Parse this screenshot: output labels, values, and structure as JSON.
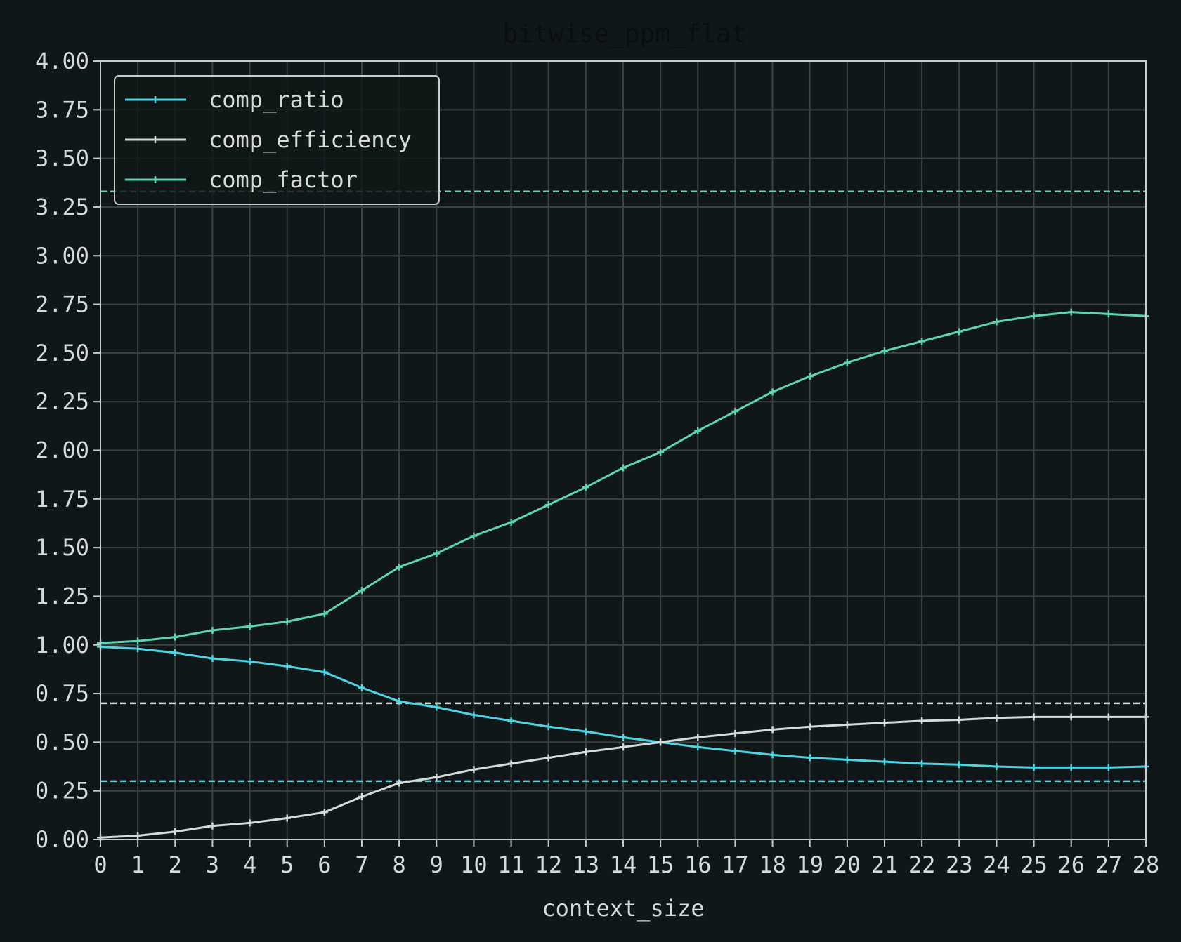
{
  "chart_data": {
    "type": "line",
    "title": "bitwise_ppm_flat",
    "xlabel": "context_size",
    "ylabel": "",
    "xlim": [
      0,
      28
    ],
    "ylim": [
      0,
      4
    ],
    "grid": true,
    "legend_position": "top-left",
    "background_color": "#101718",
    "x": [
      0,
      1,
      2,
      3,
      4,
      5,
      6,
      7,
      8,
      9,
      10,
      11,
      12,
      13,
      14,
      15,
      16,
      17,
      18,
      19,
      20,
      21,
      22,
      23,
      24,
      25,
      26,
      27,
      28
    ],
    "x_ticks": [
      "0",
      "1",
      "2",
      "3",
      "4",
      "5",
      "6",
      "7",
      "8",
      "9",
      "10",
      "11",
      "12",
      "13",
      "14",
      "15",
      "16",
      "17",
      "18",
      "19",
      "20",
      "21",
      "22",
      "23",
      "24",
      "25",
      "26",
      "27",
      "28"
    ],
    "y_ticks": [
      "0.00",
      "0.25",
      "0.50",
      "0.75",
      "1.00",
      "1.25",
      "1.50",
      "1.75",
      "2.00",
      "2.25",
      "2.50",
      "2.75",
      "3.00",
      "3.25",
      "3.50",
      "3.75",
      "4.00"
    ],
    "series": [
      {
        "name": "comp_ratio",
        "color": "#4fd4e3",
        "values": [
          0.99,
          0.98,
          0.96,
          0.93,
          0.915,
          0.89,
          0.86,
          0.78,
          0.71,
          0.68,
          0.64,
          0.61,
          0.58,
          0.555,
          0.525,
          0.5,
          0.475,
          0.455,
          0.435,
          0.42,
          0.41,
          0.4,
          0.39,
          0.385,
          0.375,
          0.37,
          0.37,
          0.37,
          0.375
        ]
      },
      {
        "name": "comp_efficiency",
        "color": "#d6dad9",
        "values": [
          0.01,
          0.02,
          0.04,
          0.07,
          0.085,
          0.11,
          0.14,
          0.22,
          0.29,
          0.32,
          0.36,
          0.39,
          0.42,
          0.45,
          0.475,
          0.5,
          0.525,
          0.545,
          0.565,
          0.58,
          0.59,
          0.6,
          0.61,
          0.615,
          0.625,
          0.63,
          0.63,
          0.63,
          0.63
        ]
      },
      {
        "name": "comp_factor",
        "color": "#5fd3b5",
        "values": [
          1.01,
          1.02,
          1.04,
          1.075,
          1.095,
          1.12,
          1.16,
          1.28,
          1.4,
          1.47,
          1.56,
          1.63,
          1.72,
          1.81,
          1.91,
          1.99,
          2.1,
          2.2,
          2.3,
          2.38,
          2.45,
          2.51,
          2.56,
          2.61,
          2.66,
          2.69,
          2.71,
          2.7,
          2.69
        ]
      }
    ],
    "reference_lines": [
      {
        "y": 3.33,
        "color": "#5fd3b5",
        "style": "dashed"
      },
      {
        "y": 0.7,
        "color": "#d6dad9",
        "style": "dashed"
      },
      {
        "y": 0.3,
        "color": "#4fd4e3",
        "style": "dashed"
      }
    ]
  }
}
